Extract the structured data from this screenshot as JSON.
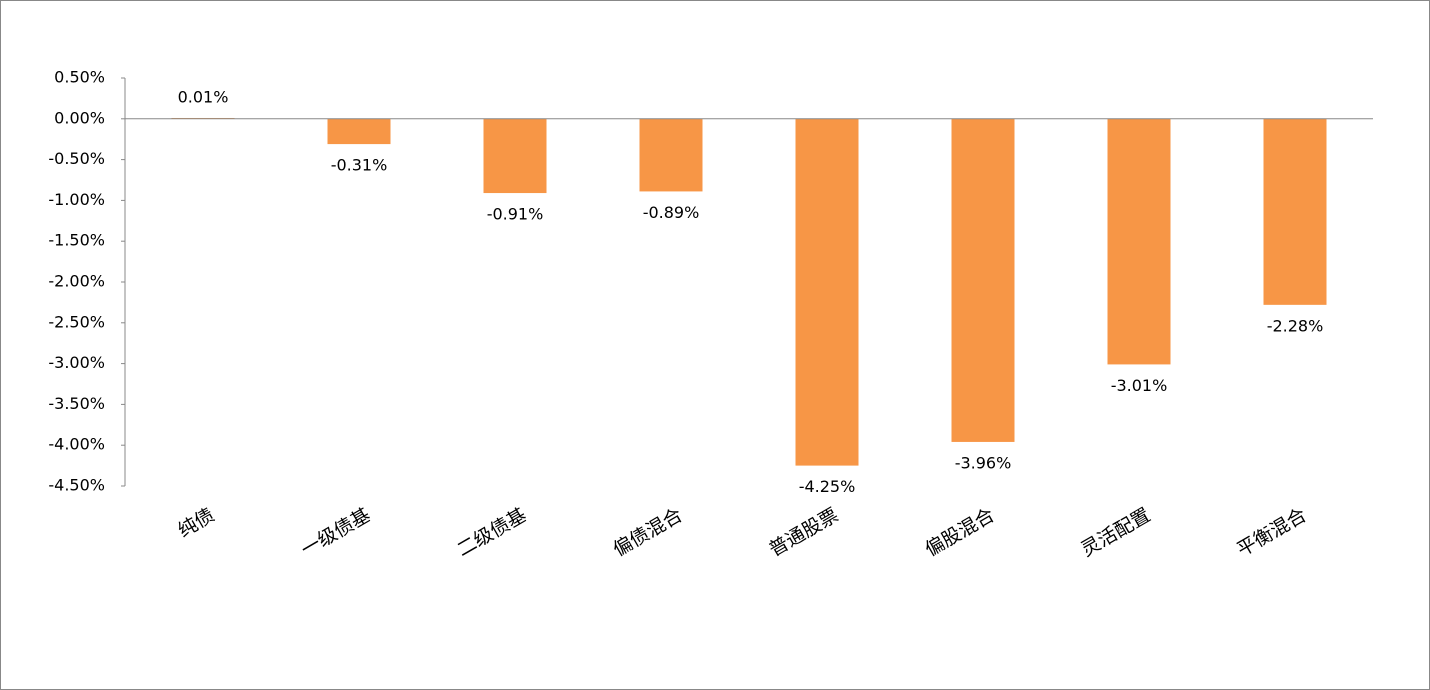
{
  "chart_data": {
    "type": "bar",
    "categories": [
      "纯债",
      "一级债基",
      "二级债基",
      "偏债混合",
      "普通股票",
      "偏股混合",
      "灵活配置",
      "平衡混合"
    ],
    "values": [
      0.01,
      -0.31,
      -0.91,
      -0.89,
      -4.25,
      -3.96,
      -3.01,
      -2.28
    ],
    "value_labels": [
      "0.01%",
      "-0.31%",
      "-0.91%",
      "-0.89%",
      "-4.25%",
      "-3.96%",
      "-3.01%",
      "-2.28%"
    ],
    "color": "#f79646",
    "ylim": [
      -4.5,
      0.5
    ],
    "yticks": [
      {
        "value": 0.5,
        "label": "0.50%"
      },
      {
        "value": 0,
        "label": "0.00%"
      },
      {
        "value": -0.5,
        "label": "-0.50%"
      },
      {
        "value": -1,
        "label": "-1.00%"
      },
      {
        "value": -1.5,
        "label": "-1.50%"
      },
      {
        "value": -2,
        "label": "-2.00%"
      },
      {
        "value": -2.5,
        "label": "-2.50%"
      },
      {
        "value": -3,
        "label": "-3.00%"
      },
      {
        "value": -3.5,
        "label": "-3.50%"
      },
      {
        "value": -4,
        "label": "-4.00%"
      },
      {
        "value": -4.5,
        "label": "-4.50%"
      }
    ],
    "grid": false
  }
}
